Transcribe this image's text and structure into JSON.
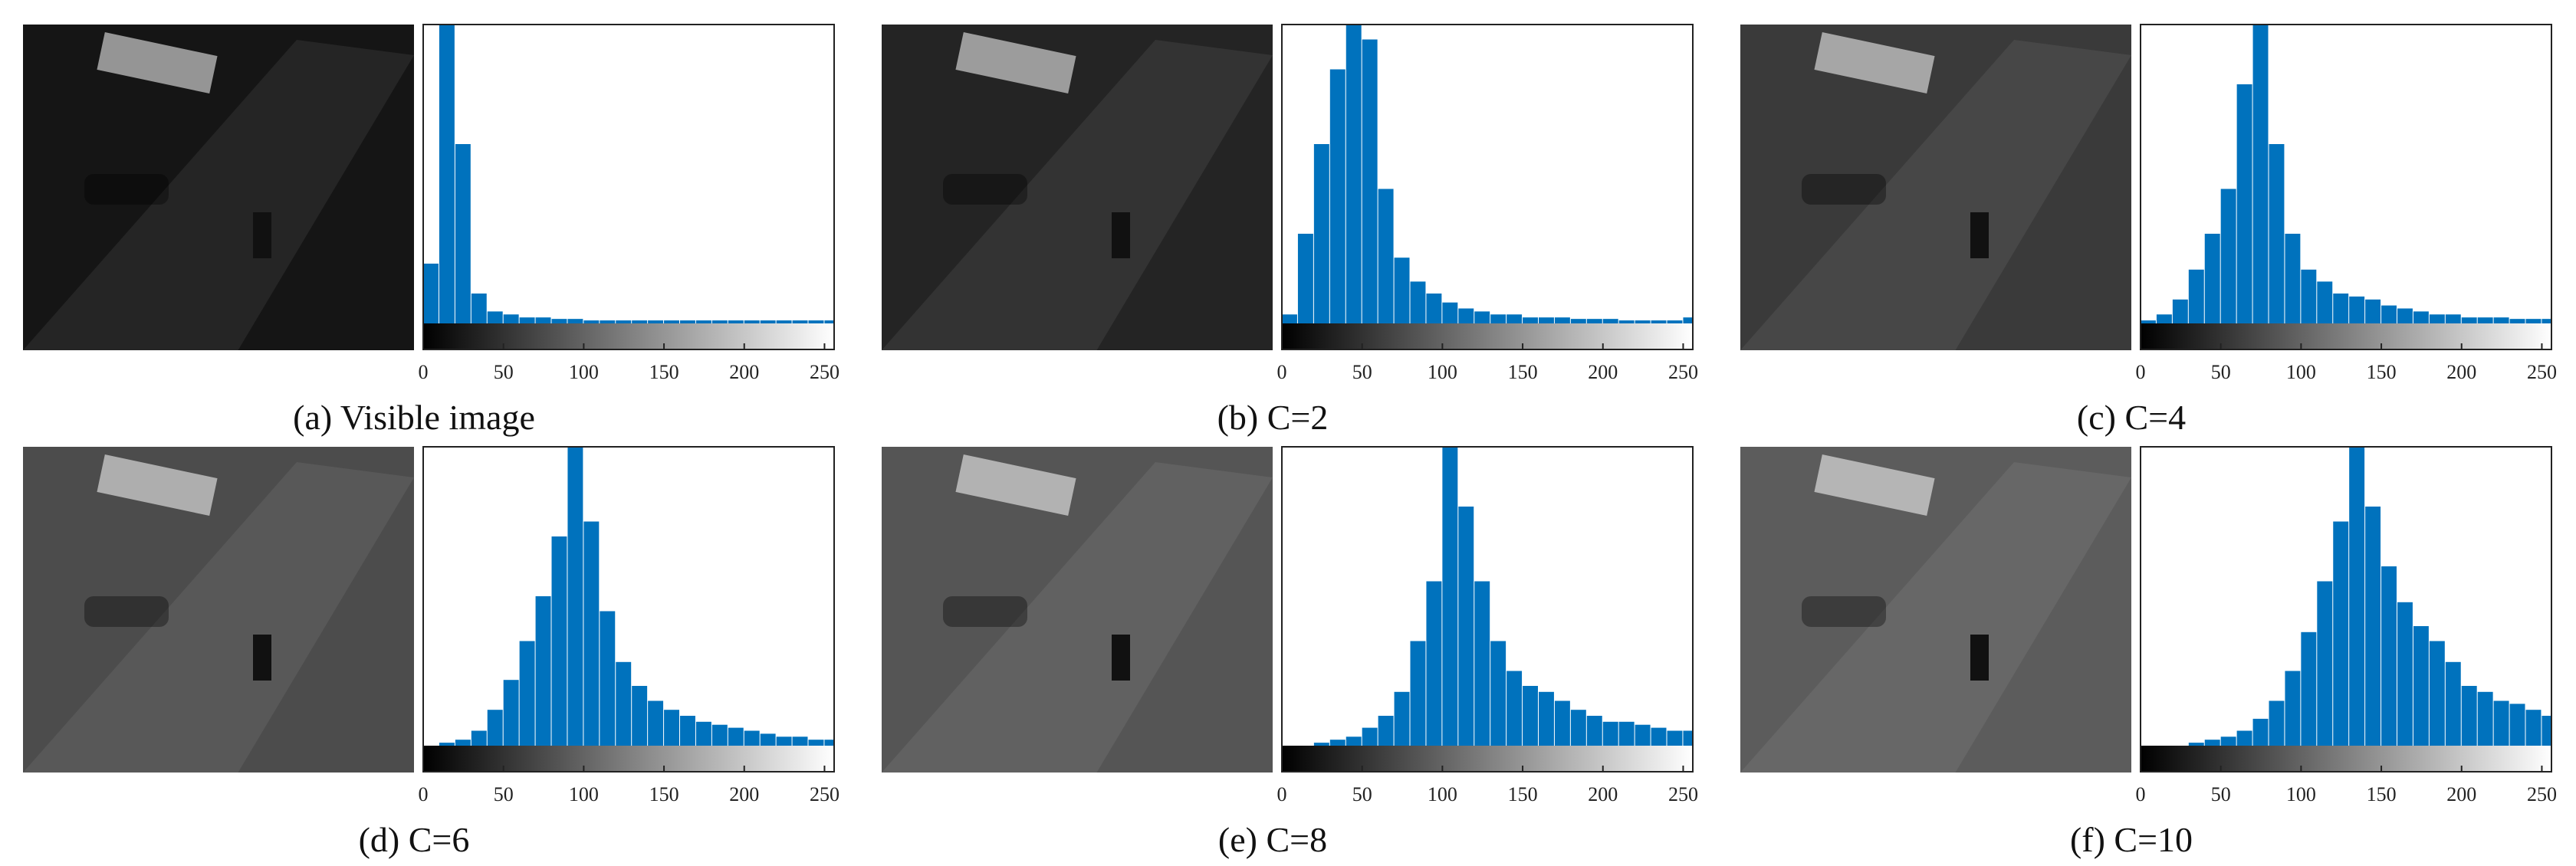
{
  "chart_data": [
    {
      "type": "histogram",
      "caption": "(a) Visible image",
      "color": "#0072bd",
      "xlim": [
        0,
        256
      ],
      "ylim": [
        0,
        100
      ],
      "xticks": [
        0,
        50,
        100,
        150,
        200,
        250
      ],
      "bins": [
        0,
        10,
        20,
        30,
        40,
        50,
        60,
        70,
        80,
        90,
        100,
        110,
        120,
        130,
        140,
        150,
        160,
        170,
        180,
        190,
        200,
        210,
        220,
        230,
        240,
        250,
        256
      ],
      "values": [
        20,
        100,
        60,
        10,
        4,
        3,
        2,
        2,
        1.5,
        1.5,
        1,
        1,
        1,
        1,
        1,
        1,
        1,
        1,
        1,
        1,
        1,
        1,
        1,
        1,
        1,
        1
      ]
    },
    {
      "type": "histogram",
      "caption": "(b) C=2",
      "color": "#0072bd",
      "xlim": [
        0,
        256
      ],
      "ylim": [
        0,
        100
      ],
      "xticks": [
        0,
        50,
        100,
        150,
        200,
        250
      ],
      "bins": [
        0,
        10,
        20,
        30,
        40,
        50,
        60,
        70,
        80,
        90,
        100,
        110,
        120,
        130,
        140,
        150,
        160,
        170,
        180,
        190,
        200,
        210,
        220,
        230,
        240,
        250,
        256
      ],
      "values": [
        3,
        30,
        60,
        85,
        100,
        95,
        45,
        22,
        14,
        10,
        7,
        5,
        4,
        3,
        3,
        2,
        2,
        2,
        1.5,
        1.5,
        1.5,
        1,
        1,
        1,
        1,
        2
      ]
    },
    {
      "type": "histogram",
      "caption": "(c) C=4",
      "color": "#0072bd",
      "xlim": [
        0,
        256
      ],
      "ylim": [
        0,
        100
      ],
      "xticks": [
        0,
        50,
        100,
        150,
        200,
        250
      ],
      "bins": [
        0,
        10,
        20,
        30,
        40,
        50,
        60,
        70,
        80,
        90,
        100,
        110,
        120,
        130,
        140,
        150,
        160,
        170,
        180,
        190,
        200,
        210,
        220,
        230,
        240,
        250,
        256
      ],
      "values": [
        1,
        3,
        8,
        18,
        30,
        45,
        80,
        100,
        60,
        30,
        18,
        14,
        10,
        9,
        8,
        6,
        5,
        4,
        3,
        3,
        2,
        2,
        2,
        1.5,
        1.5,
        1.5
      ]
    },
    {
      "type": "histogram",
      "caption": "(d) C=6",
      "color": "#0072bd",
      "xlim": [
        0,
        256
      ],
      "ylim": [
        0,
        100
      ],
      "xticks": [
        0,
        50,
        100,
        150,
        200,
        250
      ],
      "bins": [
        0,
        10,
        20,
        30,
        40,
        50,
        60,
        70,
        80,
        90,
        100,
        110,
        120,
        130,
        140,
        150,
        160,
        170,
        180,
        190,
        200,
        210,
        220,
        230,
        240,
        250,
        256
      ],
      "values": [
        0,
        1,
        2,
        5,
        12,
        22,
        35,
        50,
        70,
        100,
        75,
        45,
        28,
        20,
        15,
        12,
        10,
        8,
        7,
        6,
        5,
        4,
        3,
        3,
        2,
        2
      ]
    },
    {
      "type": "histogram",
      "caption": "(e) C=8",
      "color": "#0072bd",
      "xlim": [
        0,
        256
      ],
      "ylim": [
        0,
        100
      ],
      "xticks": [
        0,
        50,
        100,
        150,
        200,
        250
      ],
      "bins": [
        0,
        10,
        20,
        30,
        40,
        50,
        60,
        70,
        80,
        90,
        100,
        110,
        120,
        130,
        140,
        150,
        160,
        170,
        180,
        190,
        200,
        210,
        220,
        230,
        240,
        250,
        256
      ],
      "values": [
        0,
        0,
        1,
        2,
        3,
        6,
        10,
        18,
        35,
        55,
        100,
        80,
        55,
        35,
        25,
        20,
        18,
        15,
        12,
        10,
        8,
        8,
        7,
        6,
        5,
        5
      ]
    },
    {
      "type": "histogram",
      "caption": "(f) C=10",
      "color": "#0072bd",
      "xlim": [
        0,
        256
      ],
      "ylim": [
        0,
        100
      ],
      "xticks": [
        0,
        50,
        100,
        150,
        200,
        250
      ],
      "bins": [
        0,
        10,
        20,
        30,
        40,
        50,
        60,
        70,
        80,
        90,
        100,
        110,
        120,
        130,
        140,
        150,
        160,
        170,
        180,
        190,
        200,
        210,
        220,
        230,
        240,
        250,
        256
      ],
      "values": [
        0,
        0,
        0,
        1,
        2,
        3,
        5,
        9,
        15,
        25,
        38,
        55,
        75,
        100,
        80,
        60,
        48,
        40,
        35,
        28,
        20,
        18,
        15,
        14,
        12,
        10
      ]
    }
  ]
}
